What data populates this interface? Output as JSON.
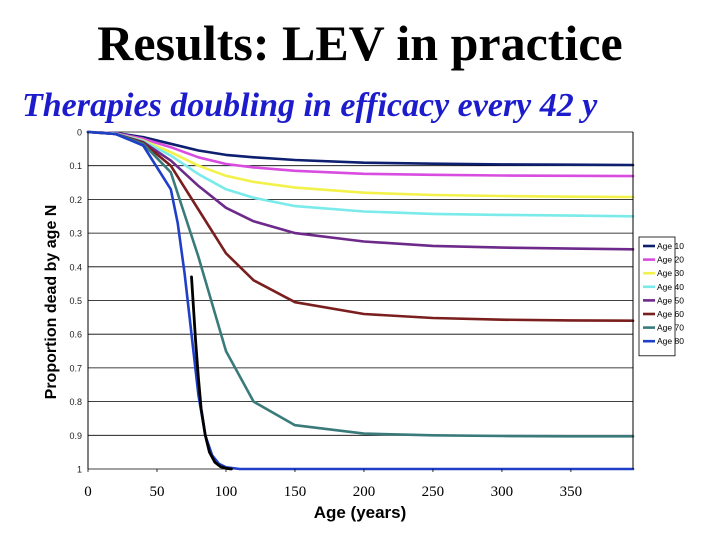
{
  "slide": {
    "title": "Results: LEV in practice",
    "subtitle": "Therapies doubling in efficacy every 42 y"
  },
  "chart_data": {
    "type": "line",
    "xlabel": "Age (years)",
    "ylabel": "Proportion dead by age N",
    "x_ticks": [
      "0",
      "50",
      "100",
      "150",
      "200",
      "250",
      "300",
      "350"
    ],
    "y_ticks": [
      "0",
      "0.1",
      "0.2",
      "0.3",
      "0.4",
      "0.5",
      "0.6",
      "0.7",
      "0.8",
      "0.9",
      "1"
    ],
    "xlim": [
      0,
      395
    ],
    "ylim": [
      0,
      1
    ],
    "y_inverted": true,
    "grid": "horizontal",
    "legend_position": "right",
    "series": [
      {
        "name": "Age 10",
        "color": "#0d1f6e",
        "x": [
          0,
          20,
          40,
          60,
          80,
          100,
          120,
          150,
          200,
          250,
          300,
          350,
          395
        ],
        "y": [
          0,
          0.003,
          0.015,
          0.035,
          0.055,
          0.068,
          0.075,
          0.083,
          0.091,
          0.094,
          0.096,
          0.097,
          0.098
        ]
      },
      {
        "name": "Age 20",
        "color": "#d84de0",
        "x": [
          0,
          20,
          40,
          60,
          80,
          100,
          120,
          150,
          200,
          250,
          300,
          350,
          395
        ],
        "y": [
          0,
          0.004,
          0.02,
          0.045,
          0.075,
          0.095,
          0.105,
          0.115,
          0.124,
          0.127,
          0.129,
          0.13,
          0.131
        ]
      },
      {
        "name": "Age 30",
        "color": "#f2f24a",
        "x": [
          0,
          20,
          40,
          60,
          80,
          100,
          120,
          150,
          200,
          250,
          300,
          350,
          395
        ],
        "y": [
          0,
          0.005,
          0.025,
          0.06,
          0.1,
          0.13,
          0.148,
          0.165,
          0.18,
          0.187,
          0.19,
          0.192,
          0.193
        ]
      },
      {
        "name": "Age 40",
        "color": "#7aeaea",
        "x": [
          0,
          20,
          40,
          60,
          80,
          100,
          120,
          150,
          200,
          250,
          300,
          350,
          395
        ],
        "y": [
          0,
          0.005,
          0.027,
          0.07,
          0.125,
          0.17,
          0.195,
          0.22,
          0.236,
          0.243,
          0.246,
          0.248,
          0.25
        ]
      },
      {
        "name": "Age 50",
        "color": "#6e2a8a",
        "x": [
          0,
          20,
          40,
          60,
          80,
          100,
          120,
          150,
          200,
          250,
          300,
          350,
          395
        ],
        "y": [
          0,
          0.006,
          0.03,
          0.085,
          0.16,
          0.225,
          0.265,
          0.3,
          0.325,
          0.338,
          0.343,
          0.346,
          0.348
        ]
      },
      {
        "name": "Age 60",
        "color": "#7a1e1e",
        "x": [
          0,
          20,
          40,
          60,
          80,
          100,
          120,
          150,
          200,
          250,
          300,
          350,
          395
        ],
        "y": [
          0,
          0.006,
          0.032,
          0.1,
          0.23,
          0.36,
          0.44,
          0.505,
          0.54,
          0.552,
          0.557,
          0.559,
          0.56
        ]
      },
      {
        "name": "Age 70",
        "color": "#3a7a7a",
        "x": [
          0,
          20,
          40,
          60,
          80,
          100,
          120,
          150,
          200,
          250,
          300,
          350,
          395
        ],
        "y": [
          0,
          0.006,
          0.035,
          0.12,
          0.37,
          0.65,
          0.8,
          0.87,
          0.895,
          0.9,
          0.902,
          0.903,
          0.903
        ]
      },
      {
        "name": "Age 80",
        "color": "#1f3fc8",
        "x": [
          0,
          20,
          40,
          60,
          65,
          70,
          75,
          80,
          85,
          90,
          95,
          100,
          110,
          150,
          200,
          395
        ],
        "y": [
          0,
          0.006,
          0.04,
          0.17,
          0.27,
          0.42,
          0.6,
          0.78,
          0.9,
          0.96,
          0.985,
          0.995,
          1,
          1,
          1,
          1
        ]
      },
      {
        "color": "#000000",
        "x": [
          75,
          78,
          80,
          82,
          85,
          88,
          92,
          96,
          100,
          104
        ],
        "y": [
          0.43,
          0.62,
          0.73,
          0.82,
          0.9,
          0.95,
          0.98,
          0.993,
          0.998,
          1
        ]
      }
    ]
  }
}
